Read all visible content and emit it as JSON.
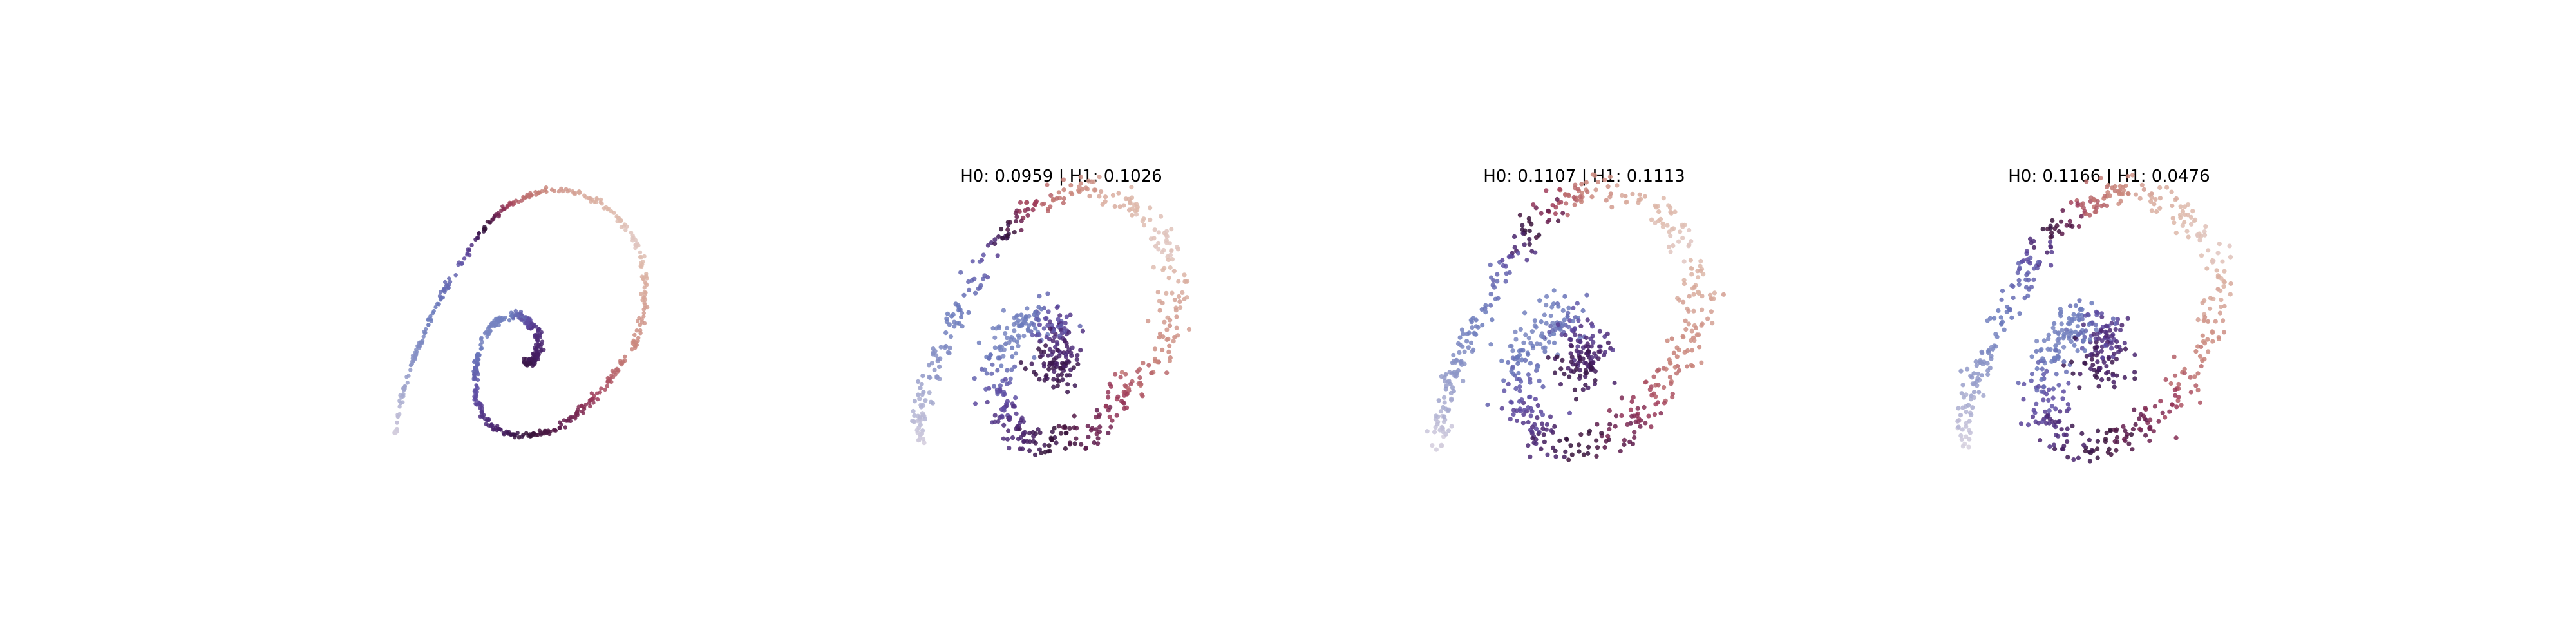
{
  "chart_data": [
    {
      "type": "scatter",
      "title": "",
      "xlabel": "",
      "ylabel": "",
      "axes_visible": false,
      "grid": false,
      "colormap": "twilight (light grey → lavender → blue-purple → deep purple → maroon → rose → peach)",
      "series": [
        {
          "role": "spiral spine",
          "t_range": [
            0,
            1
          ],
          "n_points": 700,
          "noise": 0.006
        }
      ]
    },
    {
      "type": "scatter",
      "title": "H0: 0.0959 | H1: 0.1026",
      "xlabel": "",
      "ylabel": "",
      "axes_visible": false,
      "grid": false,
      "colormap": "twilight",
      "series": [
        {
          "role": "spiral spine",
          "t_range": [
            0,
            1
          ],
          "n_points": 700,
          "noise": 0.028
        }
      ]
    },
    {
      "type": "scatter",
      "title": "H0: 0.1107 | H1: 0.1113",
      "xlabel": "",
      "ylabel": "",
      "axes_visible": false,
      "grid": false,
      "colormap": "twilight",
      "series": [
        {
          "role": "spiral spine",
          "t_range": [
            0,
            1
          ],
          "n_points": 700,
          "noise": 0.034
        }
      ]
    },
    {
      "type": "scatter",
      "title": "H0: 0.1166 | H1: 0.0476",
      "xlabel": "",
      "ylabel": "",
      "axes_visible": false,
      "grid": false,
      "colormap": "twilight",
      "series": [
        {
          "role": "spiral spine",
          "t_range": [
            0,
            1
          ],
          "n_points": 700,
          "noise": 0.034
        }
      ]
    }
  ]
}
